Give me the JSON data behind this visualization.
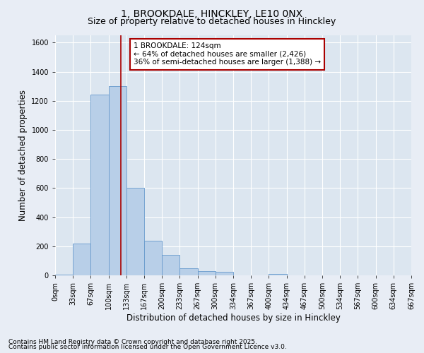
{
  "title1": "1, BROOKDALE, HINCKLEY, LE10 0NX",
  "title2": "Size of property relative to detached houses in Hinckley",
  "xlabel": "Distribution of detached houses by size in Hinckley",
  "ylabel": "Number of detached properties",
  "footer1": "Contains HM Land Registry data © Crown copyright and database right 2025.",
  "footer2": "Contains public sector information licensed under the Open Government Licence v3.0.",
  "bar_values": [
    5,
    220,
    1240,
    1300,
    600,
    240,
    140,
    50,
    30,
    25,
    0,
    0,
    10,
    0,
    0,
    0,
    0,
    0,
    0,
    0
  ],
  "bar_labels": [
    "0sqm",
    "33sqm",
    "67sqm",
    "100sqm",
    "133sqm",
    "167sqm",
    "200sqm",
    "233sqm",
    "267sqm",
    "300sqm",
    "334sqm",
    "367sqm",
    "400sqm",
    "434sqm",
    "467sqm",
    "500sqm",
    "534sqm",
    "567sqm",
    "600sqm",
    "634sqm",
    "667sqm"
  ],
  "bar_color": "#b8cfe8",
  "bar_edge_color": "#6699cc",
  "annotation_box_color": "#aa0000",
  "annotation_line1": "1 BROOKDALE: 124sqm",
  "annotation_line2": "← 64% of detached houses are smaller (2,426)",
  "annotation_line3": "36% of semi-detached houses are larger (1,388) →",
  "vline_x_bin": 3.7,
  "bin_width": 1,
  "n_bars": 20,
  "ylim": [
    0,
    1650
  ],
  "yticks": [
    0,
    200,
    400,
    600,
    800,
    1000,
    1200,
    1400,
    1600
  ],
  "background_color": "#e8edf5",
  "plot_bg_color": "#dce6f0",
  "grid_color": "#ffffff",
  "title_fontsize": 10,
  "subtitle_fontsize": 9,
  "axis_label_fontsize": 8.5,
  "tick_fontsize": 7,
  "annotation_fontsize": 7.5,
  "footer_fontsize": 6.5
}
